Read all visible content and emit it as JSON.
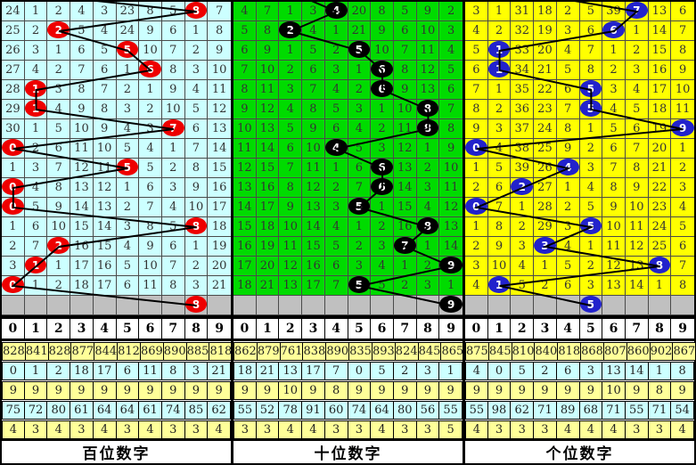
{
  "chart_data": {
    "type": "table",
    "series": [
      {
        "name": "百位数字",
        "drawn_digits": [
          8,
          2,
          5,
          6,
          1,
          1,
          7,
          0,
          5,
          0,
          0,
          8,
          2,
          1,
          0
        ],
        "pending_digit": 8
      },
      {
        "name": "十位数字",
        "drawn_digits": [
          4,
          2,
          5,
          6,
          6,
          8,
          8,
          4,
          6,
          6,
          5,
          8,
          7,
          9,
          5
        ],
        "pending_digit": 9
      },
      {
        "name": "个位数字",
        "drawn_digits": [
          7,
          6,
          1,
          1,
          5,
          5,
          9,
          0,
          4,
          2,
          0,
          5,
          3,
          8,
          1
        ],
        "pending_digit": 5
      }
    ]
  },
  "panels": [
    {
      "footer": "百位数字",
      "colors": {
        "bg": "#CCFFFF",
        "ball": "#EE0000",
        "ball_text": "#FFFFFF"
      },
      "incoming_col": 0,
      "digit_header": [
        "0",
        "1",
        "2",
        "3",
        "4",
        "5",
        "6",
        "7",
        "8",
        "9"
      ],
      "grid_rows": [
        {
          "cells": [
            "24",
            "1",
            "2",
            "4",
            "3",
            "23",
            "8",
            "5",
            "8",
            "7"
          ],
          "ball": 8
        },
        {
          "cells": [
            "25",
            "2",
            "2",
            "5",
            "4",
            "24",
            "9",
            "6",
            "1",
            "8"
          ],
          "ball": 2
        },
        {
          "cells": [
            "26",
            "3",
            "1",
            "6",
            "5",
            "5",
            "10",
            "7",
            "2",
            "9"
          ],
          "ball": 5
        },
        {
          "cells": [
            "27",
            "4",
            "2",
            "7",
            "6",
            "1",
            "6",
            "8",
            "3",
            "10"
          ],
          "ball": 6
        },
        {
          "cells": [
            "28",
            "1",
            "3",
            "8",
            "7",
            "2",
            "1",
            "9",
            "4",
            "11"
          ],
          "ball": 1
        },
        {
          "cells": [
            "29",
            "1",
            "4",
            "9",
            "8",
            "3",
            "2",
            "10",
            "5",
            "12"
          ],
          "ball": 1
        },
        {
          "cells": [
            "30",
            "1",
            "5",
            "10",
            "9",
            "4",
            "3",
            "7",
            "6",
            "13"
          ],
          "ball": 7
        },
        {
          "cells": [
            "0",
            "2",
            "6",
            "11",
            "10",
            "5",
            "4",
            "1",
            "7",
            "14"
          ],
          "ball": 0
        },
        {
          "cells": [
            "1",
            "3",
            "7",
            "12",
            "11",
            "5",
            "5",
            "2",
            "8",
            "15"
          ],
          "ball": 5
        },
        {
          "cells": [
            "0",
            "4",
            "8",
            "13",
            "12",
            "1",
            "6",
            "3",
            "9",
            "16"
          ],
          "ball": 0
        },
        {
          "cells": [
            "0",
            "5",
            "9",
            "14",
            "13",
            "2",
            "7",
            "4",
            "10",
            "17"
          ],
          "ball": 0
        },
        {
          "cells": [
            "1",
            "6",
            "10",
            "15",
            "14",
            "3",
            "8",
            "5",
            "8",
            "18"
          ],
          "ball": 8
        },
        {
          "cells": [
            "2",
            "7",
            "2",
            "16",
            "15",
            "4",
            "9",
            "6",
            "1",
            "19"
          ],
          "ball": 2
        },
        {
          "cells": [
            "3",
            "1",
            "1",
            "17",
            "16",
            "5",
            "10",
            "7",
            "2",
            "20"
          ],
          "ball": 1
        },
        {
          "cells": [
            "0",
            "1",
            "2",
            "18",
            "17",
            "6",
            "11",
            "8",
            "3",
            "21"
          ],
          "ball": 0
        }
      ],
      "pending_ball": {
        "col": 8,
        "value": "8"
      },
      "stats": [
        [
          "828",
          "841",
          "828",
          "877",
          "844",
          "812",
          "869",
          "890",
          "885",
          "818"
        ],
        [
          "0",
          "1",
          "2",
          "18",
          "17",
          "6",
          "11",
          "8",
          "3",
          "21"
        ],
        [
          "9",
          "9",
          "9",
          "9",
          "9",
          "9",
          "9",
          "9",
          "9",
          "9"
        ],
        [
          "75",
          "72",
          "80",
          "61",
          "64",
          "64",
          "61",
          "74",
          "85",
          "62"
        ],
        [
          "4",
          "3",
          "4",
          "3",
          "4",
          "3",
          "4",
          "3",
          "3",
          "4"
        ]
      ]
    },
    {
      "footer": "十位数字",
      "colors": {
        "bg": "#00DB00",
        "ball": "#000000",
        "ball_text": "#FFFFFF"
      },
      "incoming_col": 2,
      "digit_header": [
        "0",
        "1",
        "2",
        "3",
        "4",
        "5",
        "6",
        "7",
        "8",
        "9"
      ],
      "grid_rows": [
        {
          "cells": [
            "4",
            "7",
            "1",
            "3",
            "4",
            "20",
            "8",
            "5",
            "9",
            "2"
          ],
          "ball": 4
        },
        {
          "cells": [
            "5",
            "8",
            "2",
            "4",
            "1",
            "21",
            "9",
            "6",
            "10",
            "3"
          ],
          "ball": 2
        },
        {
          "cells": [
            "6",
            "9",
            "1",
            "5",
            "2",
            "5",
            "10",
            "7",
            "11",
            "4"
          ],
          "ball": 5
        },
        {
          "cells": [
            "7",
            "10",
            "2",
            "6",
            "3",
            "1",
            "6",
            "8",
            "12",
            "5"
          ],
          "ball": 6
        },
        {
          "cells": [
            "8",
            "11",
            "3",
            "7",
            "4",
            "2",
            "6",
            "9",
            "13",
            "6"
          ],
          "ball": 6
        },
        {
          "cells": [
            "9",
            "12",
            "4",
            "8",
            "5",
            "3",
            "1",
            "10",
            "8",
            "7"
          ],
          "ball": 8
        },
        {
          "cells": [
            "10",
            "13",
            "5",
            "9",
            "6",
            "4",
            "2",
            "11",
            "8",
            "8"
          ],
          "ball": 8
        },
        {
          "cells": [
            "11",
            "14",
            "6",
            "10",
            "4",
            "5",
            "3",
            "12",
            "1",
            "9"
          ],
          "ball": 4
        },
        {
          "cells": [
            "12",
            "15",
            "7",
            "11",
            "1",
            "6",
            "6",
            "13",
            "2",
            "10"
          ],
          "ball": 6
        },
        {
          "cells": [
            "13",
            "16",
            "8",
            "12",
            "2",
            "7",
            "6",
            "14",
            "3",
            "11"
          ],
          "ball": 6
        },
        {
          "cells": [
            "14",
            "17",
            "9",
            "13",
            "3",
            "5",
            "1",
            "15",
            "4",
            "12"
          ],
          "ball": 5
        },
        {
          "cells": [
            "15",
            "18",
            "10",
            "14",
            "4",
            "1",
            "2",
            "16",
            "8",
            "13"
          ],
          "ball": 8
        },
        {
          "cells": [
            "16",
            "19",
            "11",
            "15",
            "5",
            "2",
            "3",
            "7",
            "1",
            "14"
          ],
          "ball": 7
        },
        {
          "cells": [
            "17",
            "20",
            "12",
            "16",
            "6",
            "3",
            "4",
            "1",
            "2",
            "9"
          ],
          "ball": 9
        },
        {
          "cells": [
            "18",
            "21",
            "13",
            "17",
            "7",
            "5",
            "5",
            "2",
            "3",
            "1"
          ],
          "ball": 5
        }
      ],
      "pending_ball": {
        "col": 9,
        "value": "9"
      },
      "stats": [
        [
          "862",
          "879",
          "761",
          "838",
          "890",
          "835",
          "893",
          "824",
          "845",
          "865"
        ],
        [
          "18",
          "21",
          "13",
          "17",
          "7",
          "0",
          "5",
          "2",
          "3",
          "1"
        ],
        [
          "9",
          "9",
          "10",
          "9",
          "8",
          "9",
          "9",
          "9",
          "9",
          "9"
        ],
        [
          "55",
          "52",
          "78",
          "91",
          "60",
          "74",
          "64",
          "80",
          "56",
          "55"
        ],
        [
          "3",
          "3",
          "4",
          "4",
          "3",
          "3",
          "4",
          "3",
          "3",
          "5"
        ]
      ]
    },
    {
      "footer": "个位数字",
      "colors": {
        "bg": "#FFFF00",
        "ball": "#2222CC",
        "ball_text": "#FFFFFF"
      },
      "incoming_col": 2,
      "digit_header": [
        "0",
        "1",
        "2",
        "3",
        "4",
        "5",
        "6",
        "7",
        "8",
        "9"
      ],
      "grid_rows": [
        {
          "cells": [
            "3",
            "1",
            "31",
            "18",
            "2",
            "5",
            "39",
            "7",
            "13",
            "6"
          ],
          "ball": 7
        },
        {
          "cells": [
            "4",
            "2",
            "32",
            "19",
            "3",
            "6",
            "6",
            "1",
            "14",
            "7"
          ],
          "ball": 6
        },
        {
          "cells": [
            "5",
            "1",
            "33",
            "20",
            "4",
            "7",
            "1",
            "2",
            "15",
            "8"
          ],
          "ball": 1
        },
        {
          "cells": [
            "6",
            "1",
            "34",
            "21",
            "5",
            "8",
            "2",
            "3",
            "16",
            "9"
          ],
          "ball": 1
        },
        {
          "cells": [
            "7",
            "1",
            "35",
            "22",
            "6",
            "5",
            "3",
            "4",
            "17",
            "10"
          ],
          "ball": 5
        },
        {
          "cells": [
            "8",
            "2",
            "36",
            "23",
            "7",
            "5",
            "4",
            "5",
            "18",
            "11"
          ],
          "ball": 5
        },
        {
          "cells": [
            "9",
            "3",
            "37",
            "24",
            "8",
            "1",
            "5",
            "6",
            "19",
            "9"
          ],
          "ball": 9
        },
        {
          "cells": [
            "0",
            "4",
            "38",
            "25",
            "9",
            "2",
            "6",
            "7",
            "20",
            "1"
          ],
          "ball": 0
        },
        {
          "cells": [
            "1",
            "5",
            "39",
            "26",
            "4",
            "3",
            "7",
            "8",
            "21",
            "2"
          ],
          "ball": 4
        },
        {
          "cells": [
            "2",
            "6",
            "2",
            "27",
            "1",
            "4",
            "8",
            "9",
            "22",
            "3"
          ],
          "ball": 2
        },
        {
          "cells": [
            "0",
            "7",
            "1",
            "28",
            "2",
            "5",
            "9",
            "10",
            "23",
            "4"
          ],
          "ball": 0
        },
        {
          "cells": [
            "1",
            "8",
            "2",
            "29",
            "3",
            "5",
            "10",
            "11",
            "24",
            "5"
          ],
          "ball": 5
        },
        {
          "cells": [
            "2",
            "9",
            "3",
            "3",
            "4",
            "1",
            "11",
            "12",
            "25",
            "6"
          ],
          "ball": 3
        },
        {
          "cells": [
            "3",
            "10",
            "4",
            "1",
            "5",
            "2",
            "12",
            "13",
            "8",
            "7"
          ],
          "ball": 8
        },
        {
          "cells": [
            "4",
            "1",
            "5",
            "2",
            "6",
            "3",
            "13",
            "14",
            "1",
            "8"
          ],
          "ball": 1
        }
      ],
      "pending_ball": {
        "col": 5,
        "value": "5"
      },
      "stats": [
        [
          "875",
          "845",
          "810",
          "840",
          "818",
          "868",
          "807",
          "860",
          "902",
          "867"
        ],
        [
          "4",
          "0",
          "5",
          "2",
          "6",
          "3",
          "13",
          "14",
          "1",
          "8"
        ],
        [
          "9",
          "9",
          "9",
          "9",
          "9",
          "9",
          "10",
          "9",
          "8",
          "9"
        ],
        [
          "55",
          "98",
          "62",
          "71",
          "89",
          "68",
          "71",
          "55",
          "71",
          "54"
        ],
        [
          "4",
          "3",
          "3",
          "3",
          "4",
          "4",
          "4",
          "3",
          "3",
          "4"
        ]
      ]
    }
  ]
}
